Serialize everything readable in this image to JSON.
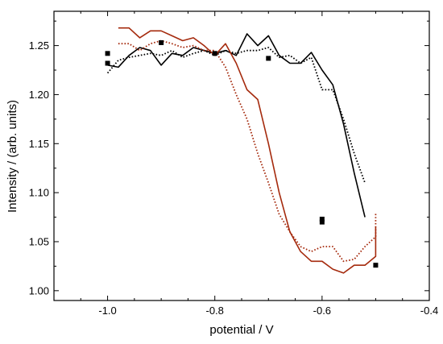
{
  "chart_data": {
    "type": "line",
    "title": "",
    "xlabel": "potential / V",
    "ylabel": "Intensity / (arb. units)",
    "xlim": [
      -1.1,
      -0.4
    ],
    "ylim": [
      0.99,
      1.285
    ],
    "x_ticks": [
      -1.0,
      -0.8,
      -0.6,
      -0.4
    ],
    "x_tick_labels": [
      "-1.0",
      "-0.8",
      "-0.6",
      "-0.4"
    ],
    "y_ticks": [
      1.0,
      1.05,
      1.1,
      1.15,
      1.2,
      1.25
    ],
    "y_tick_labels": [
      "1.00",
      "1.05",
      "1.10",
      "1.15",
      "1.20",
      "1.25"
    ],
    "grid": false,
    "legend": "none",
    "colors": {
      "black": "#000000",
      "red": "#a52a0d"
    },
    "series": [
      {
        "color": "#000000",
        "style": "solid",
        "points": [
          [
            -1.0,
            1.23
          ],
          [
            -0.98,
            1.228
          ],
          [
            -0.96,
            1.24
          ],
          [
            -0.94,
            1.248
          ],
          [
            -0.92,
            1.245
          ],
          [
            -0.9,
            1.23
          ],
          [
            -0.88,
            1.242
          ],
          [
            -0.86,
            1.24
          ],
          [
            -0.84,
            1.248
          ],
          [
            -0.82,
            1.245
          ],
          [
            -0.8,
            1.242
          ],
          [
            -0.78,
            1.245
          ],
          [
            -0.76,
            1.24
          ],
          [
            -0.74,
            1.262
          ],
          [
            -0.72,
            1.25
          ],
          [
            -0.7,
            1.26
          ],
          [
            -0.68,
            1.24
          ],
          [
            -0.66,
            1.232
          ],
          [
            -0.64,
            1.232
          ],
          [
            -0.62,
            1.243
          ],
          [
            -0.6,
            1.225
          ],
          [
            -0.58,
            1.21
          ],
          [
            -0.56,
            1.17
          ],
          [
            -0.54,
            1.12
          ],
          [
            -0.52,
            1.075
          ]
        ]
      },
      {
        "color": "#000000",
        "style": "dotted",
        "points": [
          [
            -1.0,
            1.222
          ],
          [
            -0.98,
            1.235
          ],
          [
            -0.96,
            1.238
          ],
          [
            -0.94,
            1.24
          ],
          [
            -0.92,
            1.242
          ],
          [
            -0.9,
            1.24
          ],
          [
            -0.88,
            1.245
          ],
          [
            -0.86,
            1.238
          ],
          [
            -0.84,
            1.242
          ],
          [
            -0.82,
            1.245
          ],
          [
            -0.8,
            1.24
          ],
          [
            -0.78,
            1.245
          ],
          [
            -0.76,
            1.242
          ],
          [
            -0.74,
            1.245
          ],
          [
            -0.72,
            1.245
          ],
          [
            -0.7,
            1.248
          ],
          [
            -0.68,
            1.238
          ],
          [
            -0.66,
            1.24
          ],
          [
            -0.64,
            1.232
          ],
          [
            -0.62,
            1.238
          ],
          [
            -0.6,
            1.205
          ],
          [
            -0.58,
            1.205
          ],
          [
            -0.56,
            1.175
          ],
          [
            -0.54,
            1.14
          ],
          [
            -0.52,
            1.11
          ]
        ]
      },
      {
        "color": "#a52a0d",
        "style": "solid",
        "points": [
          [
            -0.98,
            1.268
          ],
          [
            -0.96,
            1.268
          ],
          [
            -0.94,
            1.258
          ],
          [
            -0.92,
            1.265
          ],
          [
            -0.9,
            1.265
          ],
          [
            -0.88,
            1.26
          ],
          [
            -0.86,
            1.255
          ],
          [
            -0.84,
            1.258
          ],
          [
            -0.82,
            1.25
          ],
          [
            -0.8,
            1.24
          ],
          [
            -0.78,
            1.252
          ],
          [
            -0.76,
            1.232
          ],
          [
            -0.74,
            1.205
          ],
          [
            -0.72,
            1.195
          ],
          [
            -0.7,
            1.15
          ],
          [
            -0.68,
            1.1
          ],
          [
            -0.66,
            1.06
          ],
          [
            -0.64,
            1.04
          ],
          [
            -0.62,
            1.03
          ],
          [
            -0.6,
            1.03
          ],
          [
            -0.58,
            1.022
          ],
          [
            -0.56,
            1.018
          ],
          [
            -0.54,
            1.026
          ],
          [
            -0.52,
            1.026
          ],
          [
            -0.5,
            1.035
          ],
          [
            -0.5,
            1.065
          ]
        ]
      },
      {
        "color": "#a52a0d",
        "style": "dotted",
        "points": [
          [
            -0.98,
            1.252
          ],
          [
            -0.96,
            1.252
          ],
          [
            -0.94,
            1.245
          ],
          [
            -0.92,
            1.252
          ],
          [
            -0.9,
            1.255
          ],
          [
            -0.88,
            1.252
          ],
          [
            -0.86,
            1.248
          ],
          [
            -0.84,
            1.25
          ],
          [
            -0.82,
            1.245
          ],
          [
            -0.8,
            1.245
          ],
          [
            -0.78,
            1.228
          ],
          [
            -0.76,
            1.2
          ],
          [
            -0.74,
            1.175
          ],
          [
            -0.72,
            1.14
          ],
          [
            -0.7,
            1.11
          ],
          [
            -0.68,
            1.078
          ],
          [
            -0.66,
            1.06
          ],
          [
            -0.64,
            1.045
          ],
          [
            -0.62,
            1.04
          ],
          [
            -0.6,
            1.045
          ],
          [
            -0.58,
            1.045
          ],
          [
            -0.56,
            1.03
          ],
          [
            -0.54,
            1.032
          ],
          [
            -0.52,
            1.045
          ],
          [
            -0.5,
            1.055
          ],
          [
            -0.5,
            1.08
          ]
        ]
      },
      {
        "color": "#000000",
        "style": "markers",
        "points": [
          [
            -1.0,
            1.242
          ],
          [
            -1.0,
            1.232
          ],
          [
            -0.9,
            1.253
          ],
          [
            -0.8,
            1.242
          ],
          [
            -0.7,
            1.237
          ],
          [
            -0.6,
            1.073
          ],
          [
            -0.6,
            1.07
          ],
          [
            -0.5,
            1.026
          ]
        ]
      }
    ]
  }
}
